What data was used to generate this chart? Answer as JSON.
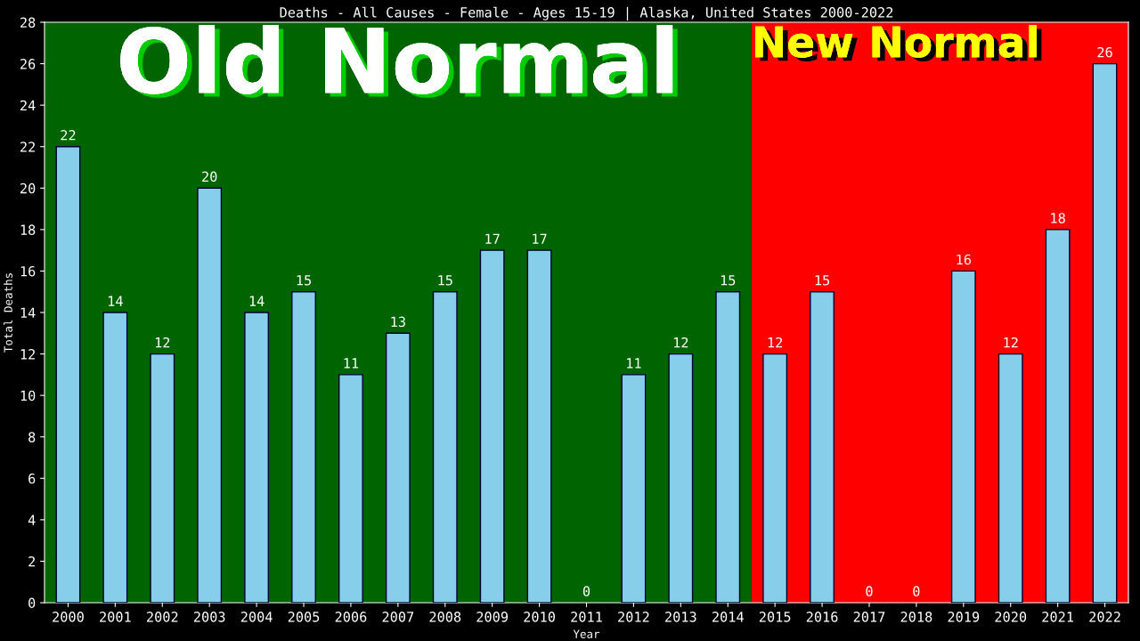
{
  "chart_data": {
    "type": "bar",
    "title": "Deaths - All Causes - Female - Ages 15-19 | Alaska, United States 2000-2022",
    "xlabel": "Year",
    "ylabel": "Total Deaths",
    "categories": [
      "2000",
      "2001",
      "2002",
      "2003",
      "2004",
      "2005",
      "2006",
      "2007",
      "2008",
      "2009",
      "2010",
      "2011",
      "2012",
      "2013",
      "2014",
      "2015",
      "2016",
      "2017",
      "2018",
      "2019",
      "2020",
      "2021",
      "2022"
    ],
    "values": [
      22,
      14,
      12,
      20,
      14,
      15,
      11,
      13,
      15,
      17,
      17,
      0,
      11,
      12,
      15,
      12,
      15,
      0,
      0,
      16,
      12,
      18,
      26
    ],
    "color": "#87ceeb",
    "ylim": [
      0,
      28
    ],
    "yticks": [
      0,
      2,
      4,
      6,
      8,
      10,
      12,
      14,
      16,
      18,
      20,
      22,
      24,
      26,
      28
    ],
    "data_labels": true,
    "grid": false,
    "bands": [
      {
        "axis": "x",
        "from": "2000",
        "to": "2014",
        "label": "Old Normal",
        "color": "#006400"
      },
      {
        "axis": "x",
        "from": "2015",
        "to": "2022",
        "label": "New Normal",
        "color": "#ff0000"
      }
    ]
  }
}
